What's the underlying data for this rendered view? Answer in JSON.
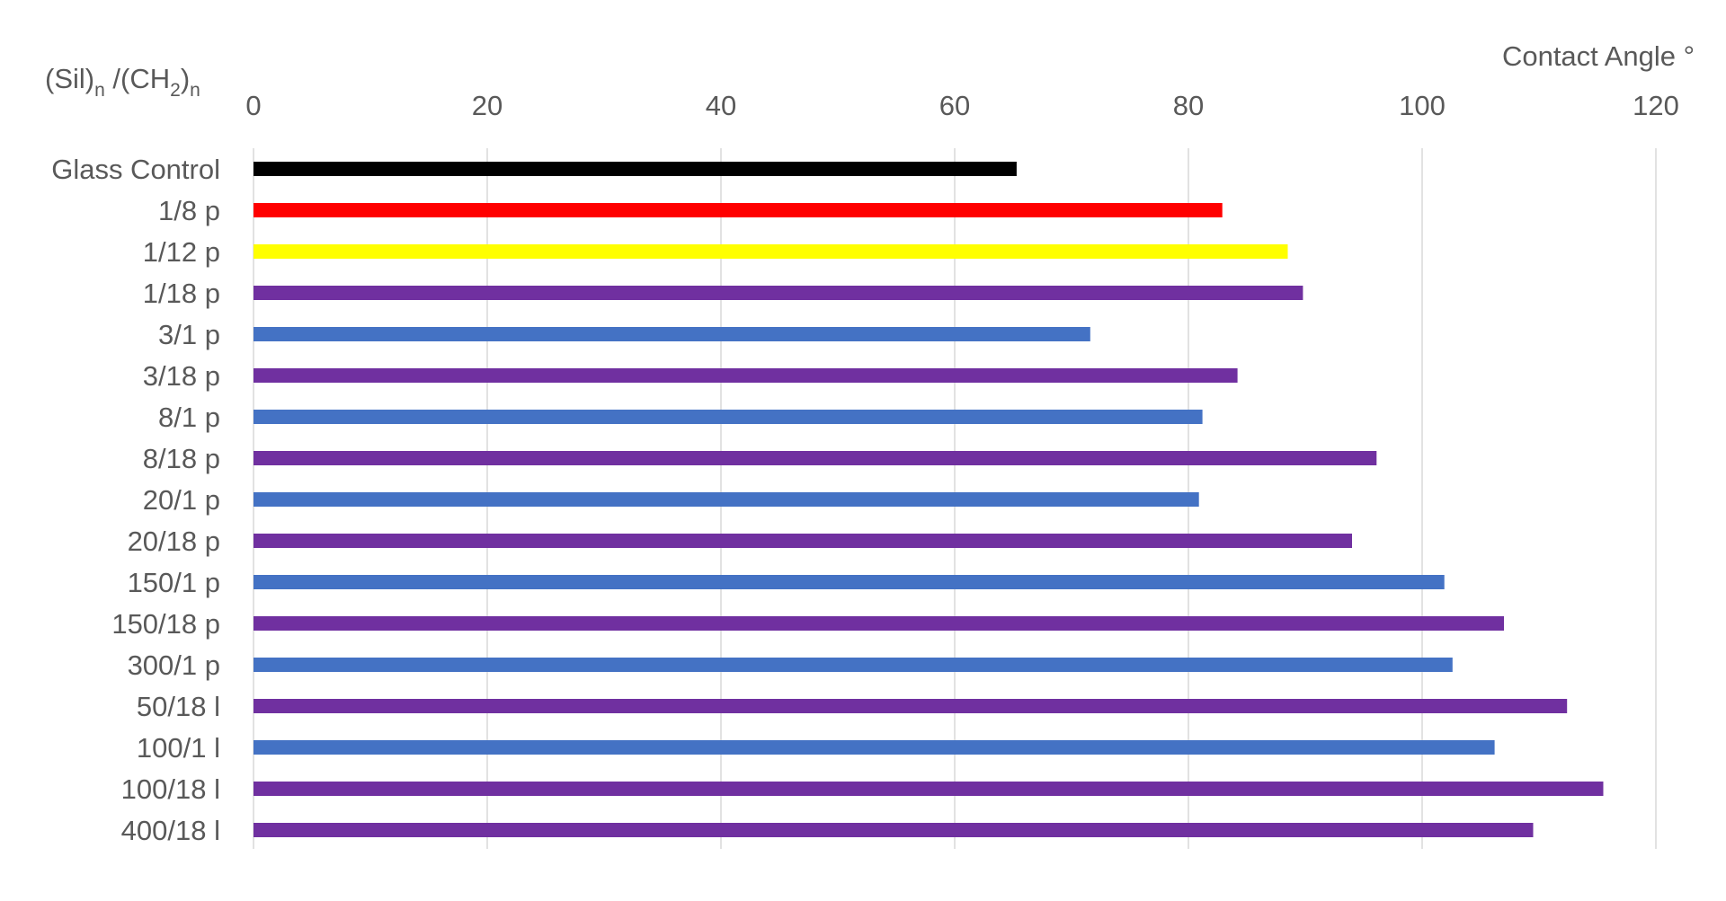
{
  "chart_data": {
    "type": "bar",
    "orientation": "horizontal",
    "y_axis_title": "(Sil)n /(CH2)n",
    "x_axis_title": "Contact Angle °",
    "x_axis_position": "top",
    "xlim": [
      0,
      120
    ],
    "x_ticks": [
      "0",
      "20",
      "40",
      "60",
      "80",
      "100",
      "120"
    ],
    "grid": true,
    "legend": "none",
    "categories": [
      "Glass Control",
      "1/8 p",
      "1/12 p",
      "1/18 p",
      "3/1 p",
      "3/18 p",
      "8/1 p",
      "8/18 p",
      "20/1 p",
      "20/18 p",
      "150/1 p",
      "150/18 p",
      "300/1 p",
      "50/18 l",
      "100/1 l",
      "100/18 l",
      "400/18 l"
    ],
    "values": [
      65.3,
      82.9,
      88.5,
      89.8,
      71.6,
      84.2,
      81.2,
      96.1,
      80.9,
      94.0,
      101.9,
      107.0,
      102.6,
      112.4,
      106.2,
      115.5,
      109.5
    ],
    "bar_colors": [
      "#000000",
      "#ff0000",
      "#ffff00",
      "#7030a0",
      "#4472c4",
      "#7030a0",
      "#4472c4",
      "#7030a0",
      "#4472c4",
      "#7030a0",
      "#4472c4",
      "#7030a0",
      "#4472c4",
      "#7030a0",
      "#4472c4",
      "#7030a0",
      "#7030a0"
    ],
    "gridline_color": "#d9d9d9",
    "text_color": "#595959"
  }
}
